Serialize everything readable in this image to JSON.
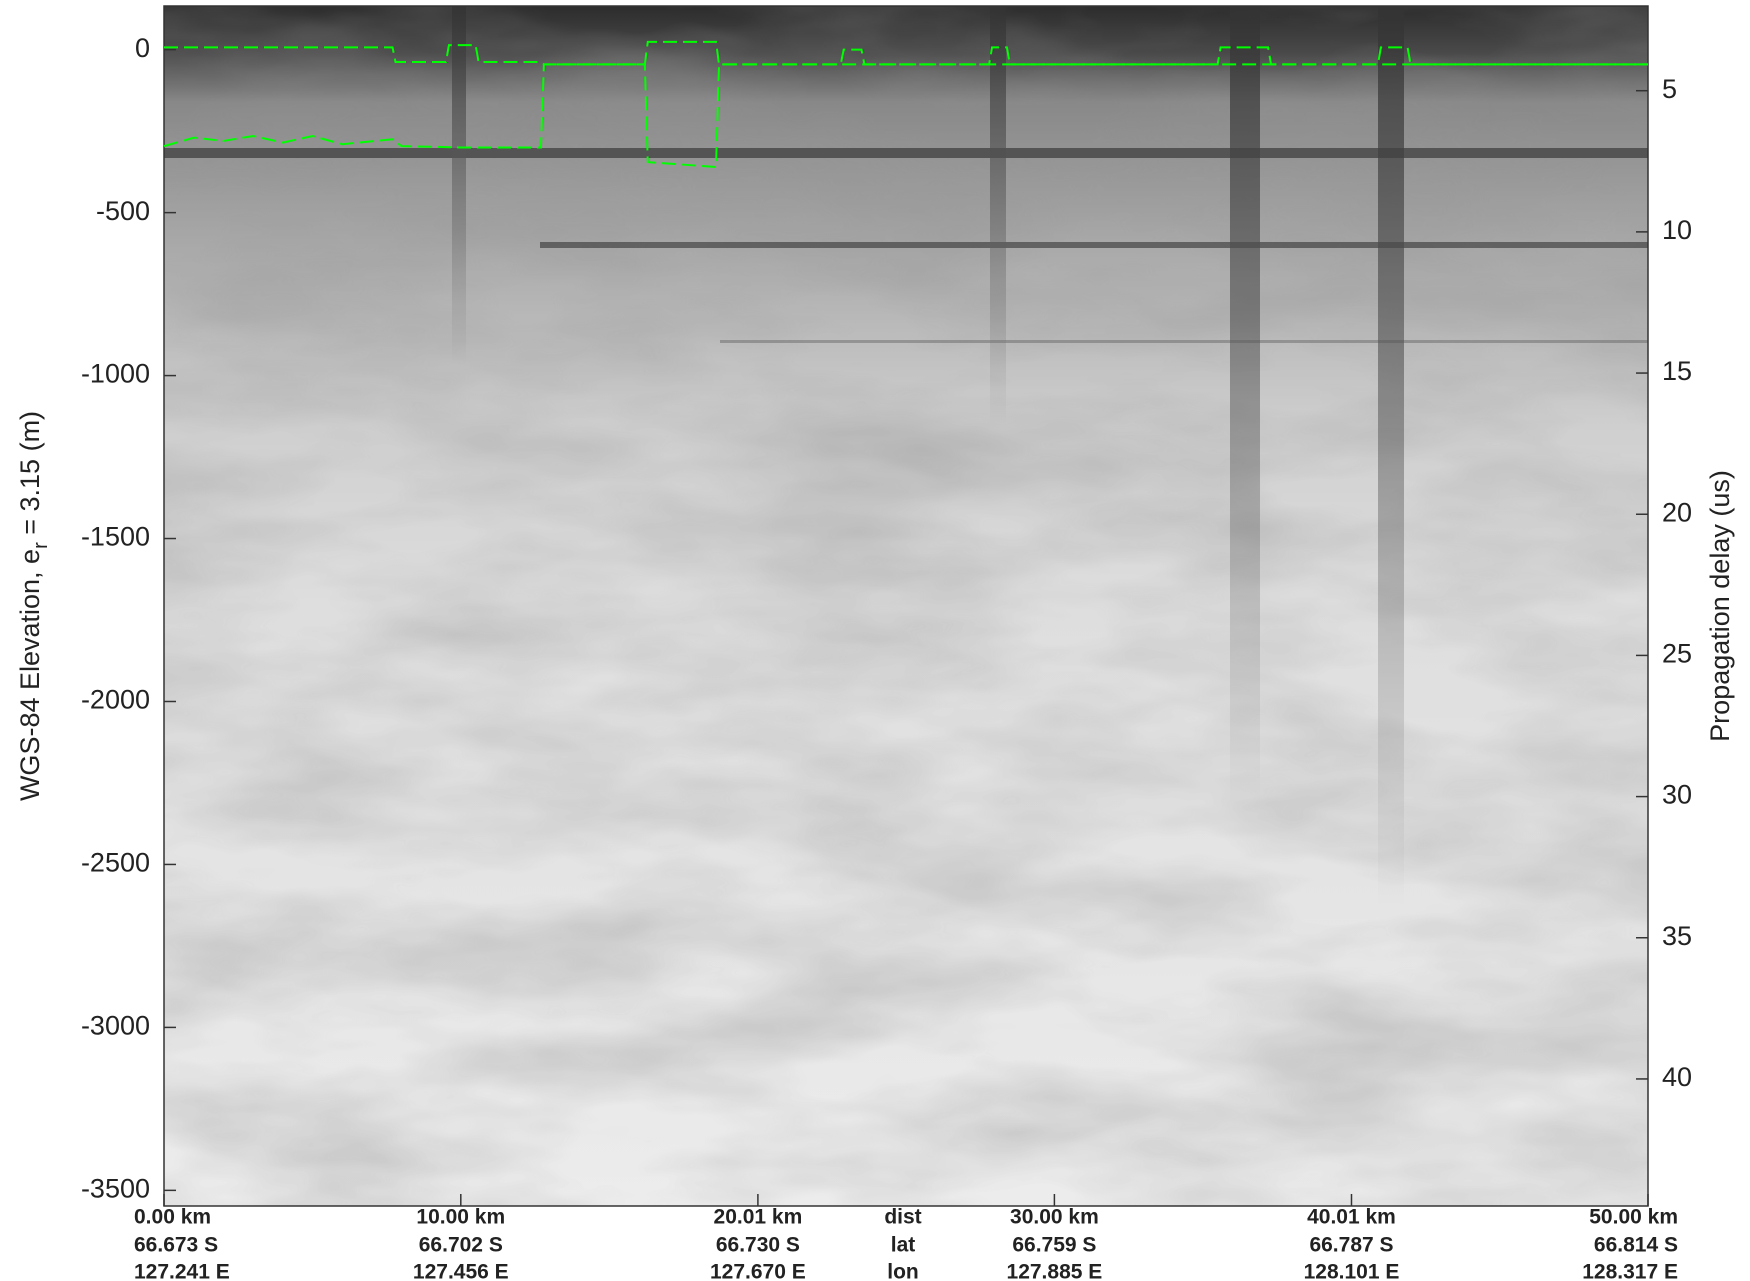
{
  "chart_data": {
    "type": "echogram",
    "ylabel": [
      "WGS-84 Elevation, e",
      "r",
      " = 3.15 (m)"
    ],
    "y2label": "Propagation delay (us)",
    "xlim": [
      0,
      50
    ],
    "xticks": [
      {
        "value": 0,
        "label": "0.00 km"
      },
      {
        "value": 10,
        "label": "10.00 km"
      },
      {
        "value": 20.01,
        "label": "20.01 km"
      },
      {
        "value": 30,
        "label": "30.00 km"
      },
      {
        "value": 40.01,
        "label": "40.01 km"
      },
      {
        "value": 50,
        "label": "50.00 km"
      }
    ],
    "lat_labels": [
      "66.673 S",
      "66.702 S",
      "66.730 S",
      "66.759 S",
      "66.787 S",
      "66.814 S"
    ],
    "lon_labels": [
      "127.241 E",
      "127.456 E",
      "127.670 E",
      "127.885 E",
      "128.101 E",
      "128.317 E"
    ],
    "row_labels": [
      "dist",
      "lat",
      "lon"
    ],
    "ylim": [
      -3548,
      134
    ],
    "yticks": [
      0,
      -500,
      -1000,
      -1500,
      -2000,
      -2500,
      -3000,
      -3500
    ],
    "y2lim": [
      44.5,
      2.0
    ],
    "y2ticks": [
      5,
      10,
      15,
      20,
      25,
      30,
      35,
      40
    ],
    "series": [
      {
        "color": "#00ff00",
        "x": [
          0,
          7.7,
          7.8,
          9.5,
          9.6,
          10.5,
          10.6,
          12.7,
          12.8,
          16.2,
          16.3,
          18.6,
          18.7,
          22.8,
          22.9,
          23.5,
          23.6,
          27.8,
          27.9,
          28.4,
          28.5,
          35.5,
          35.6,
          37.2,
          37.3,
          40.9,
          41,
          41.9,
          42,
          50
        ],
        "values": [
          7,
          7,
          -38,
          -38,
          14,
          14,
          -38,
          -38,
          -45,
          -45,
          24,
          24,
          -45,
          -45,
          0,
          0,
          -45,
          -45,
          7,
          7,
          -45,
          -45,
          7,
          7,
          -45,
          -45,
          7,
          7,
          -45,
          -45
        ]
      },
      {
        "color": "#00ff00",
        "x": [
          0,
          1,
          2,
          3,
          4,
          5,
          6,
          7.7,
          8,
          10,
          12.7,
          12.8,
          16.2,
          16.3,
          18.6,
          18.7,
          50
        ],
        "values": [
          -296,
          -270,
          -280,
          -265,
          -285,
          -265,
          -290,
          -275,
          -296,
          -300,
          -300,
          -45,
          -45,
          -345,
          -360,
          -45,
          -45
        ]
      }
    ]
  }
}
